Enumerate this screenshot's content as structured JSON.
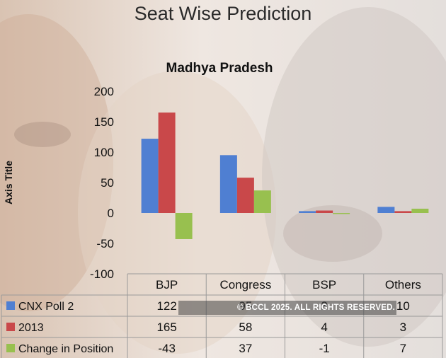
{
  "slide_title": "Seat Wise Prediction",
  "watermark": "© BCCL 2025. ALL RIGHTS RESERVED.",
  "colors": {
    "cnx": "#4f7fd2",
    "y2013": "#c9484a",
    "change": "#98c04f",
    "grid_text": "#111111"
  },
  "chart_data": {
    "type": "bar",
    "title": "Madhya Pradesh",
    "xlabel": "",
    "ylabel": "Axis Title",
    "ylim": [
      -100,
      200
    ],
    "yticks": [
      200,
      150,
      100,
      50,
      0,
      -50,
      -100
    ],
    "grid": false,
    "legend": "table-below",
    "categories": [
      "BJP",
      "Congress",
      "BSP",
      "Others"
    ],
    "series": [
      {
        "name": "CNX Poll 2",
        "values": [
          122,
          95,
          3,
          10
        ],
        "labels": [
          "122",
          "95",
          "3",
          "10"
        ],
        "color": "#4f7fd2"
      },
      {
        "name": "2013",
        "values": [
          165,
          58,
          4,
          3
        ],
        "labels": [
          "165",
          "58",
          "4",
          "3"
        ],
        "color": "#c9484a"
      },
      {
        "name": "Change in Position",
        "values": [
          -43,
          37,
          -1,
          7
        ],
        "labels": [
          "-43",
          "37",
          "-1",
          "7"
        ],
        "color": "#98c04f"
      }
    ]
  }
}
